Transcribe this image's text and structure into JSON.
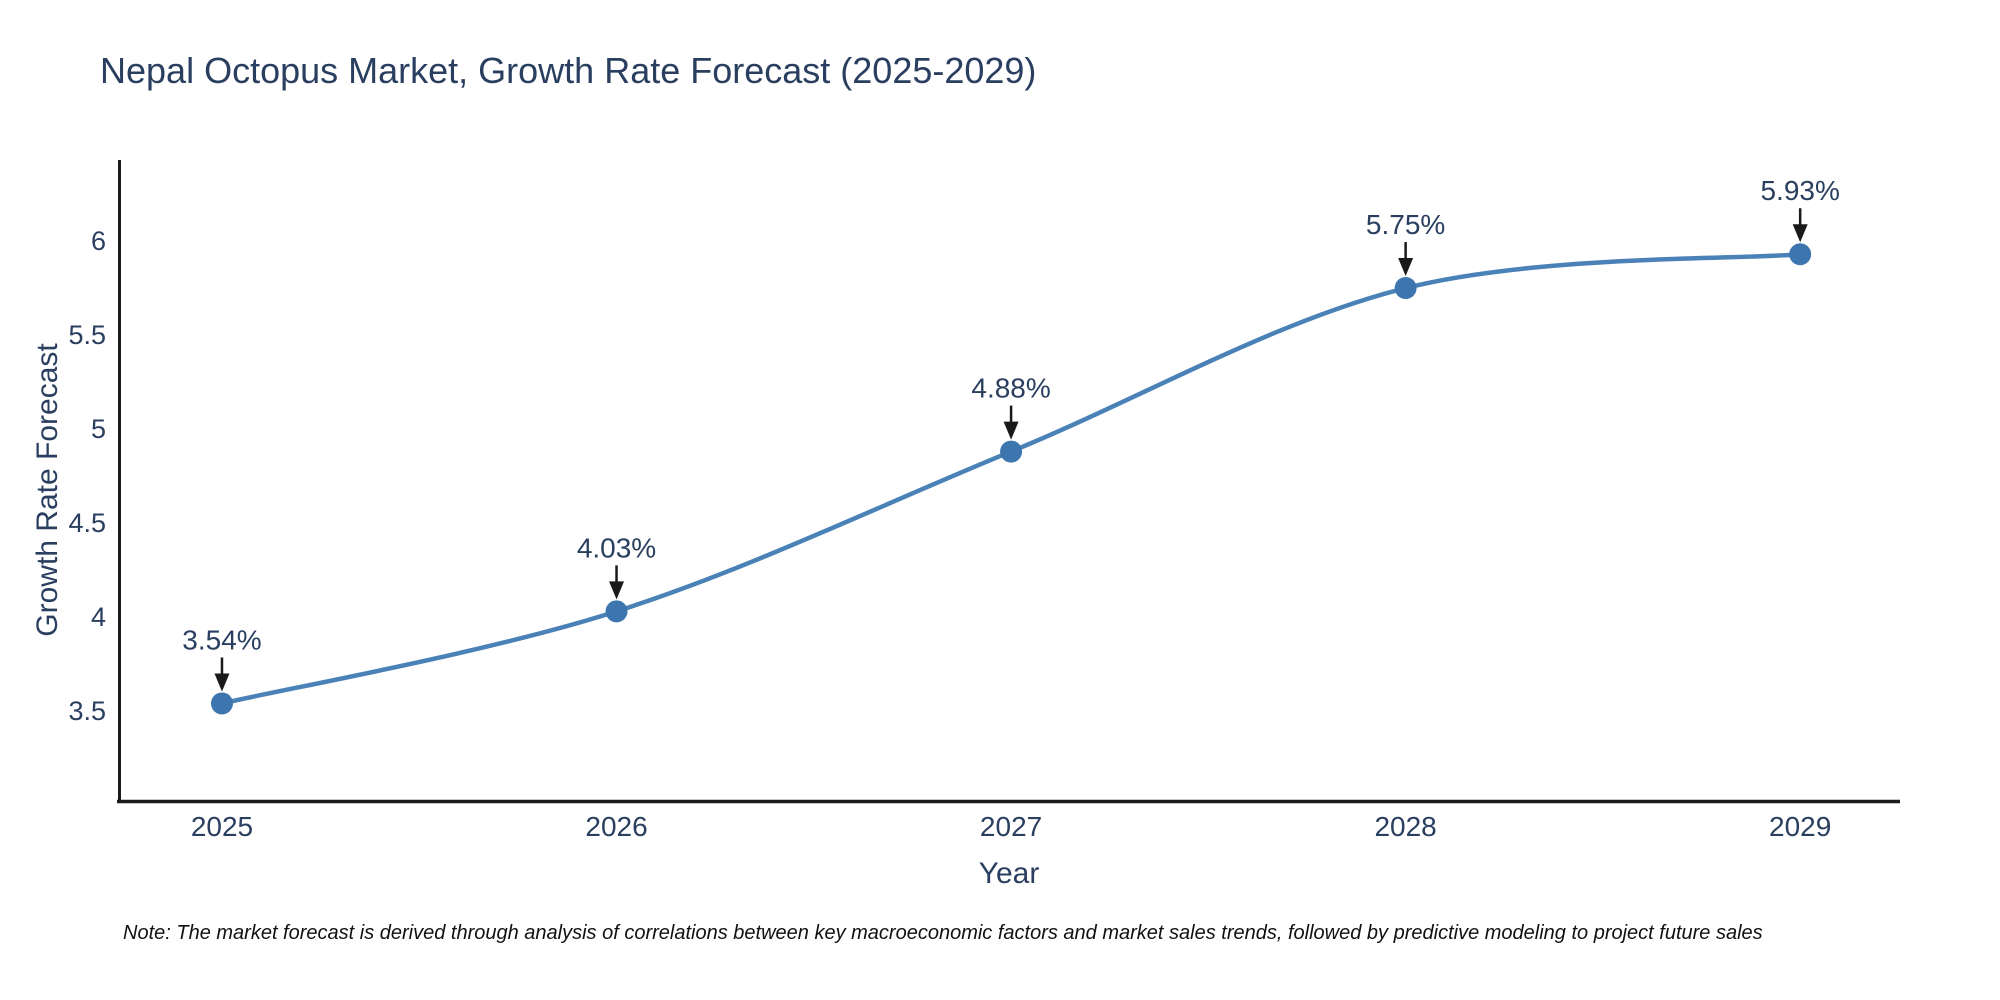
{
  "title": "Nepal Octopus Market, Growth Rate Forecast (2025-2029)",
  "note": "Note: The market forecast is derived through analysis of correlations between key macroeconomic factors and market sales trends, followed by predictive modeling to project future sales",
  "chart_data": {
    "type": "line",
    "title": "Nepal Octopus Market, Growth Rate Forecast (2025-2029)",
    "xlabel": "Year",
    "ylabel": "Growth Rate Forecast",
    "categories": [
      2025,
      2026,
      2027,
      2028,
      2029
    ],
    "values": [
      3.54,
      4.03,
      4.88,
      5.75,
      5.93
    ],
    "point_labels": [
      "3.54%",
      "4.03%",
      "4.88%",
      "5.75%",
      "5.93%"
    ],
    "y_ticks": [
      3.5,
      4,
      4.5,
      5,
      5.5,
      6
    ],
    "x_range": [
      2024.739,
      2029.253
    ],
    "y_range": [
      3.021,
      6.426
    ],
    "line_shape": "spline",
    "grid": false,
    "legend": false,
    "colors": {
      "line": "#4a82b8",
      "marker": "#3d76af",
      "arrow": "#1a1a1a",
      "axis": "#1a1a1a",
      "text": "#2a3f5f",
      "note_text": "#111111",
      "background": "#ffffff"
    }
  }
}
